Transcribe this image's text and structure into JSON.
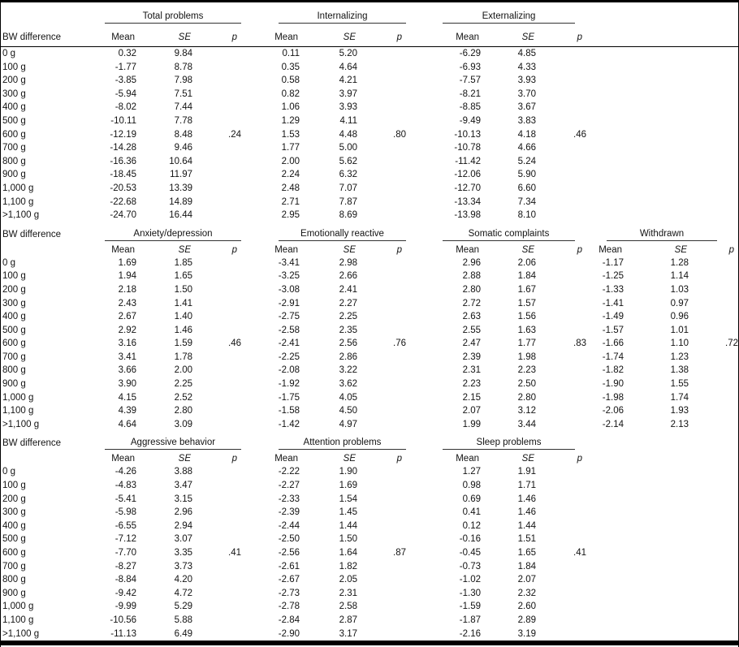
{
  "table": {
    "row_label_header": "BW difference",
    "row_labels": [
      "0 g",
      "100 g",
      "200 g",
      "300 g",
      "400 g",
      "500 g",
      "600 g",
      "700 g",
      "800 g",
      "900 g",
      "1,000 g",
      "1,100 g",
      ">1,100 g"
    ],
    "col_headers": {
      "mean": "Mean",
      "se": "SE",
      "p": "p"
    },
    "p_value_row": "600 g",
    "sections": [
      {
        "groups": [
          {
            "name": "Total problems",
            "mean": [
              "0.32",
              "-1.77",
              "-3.85",
              "-5.94",
              "-8.02",
              "-10.11",
              "-12.19",
              "-14.28",
              "-16.36",
              "-18.45",
              "-20.53",
              "-22.68",
              "-24.70"
            ],
            "se": [
              "9.84",
              "8.78",
              "7.98",
              "7.51",
              "7.44",
              "7.78",
              "8.48",
              "9.46",
              "10.64",
              "11.97",
              "13.39",
              "14.89",
              "16.44"
            ],
            "p": ".24"
          },
          {
            "name": "Internalizing",
            "mean": [
              "0.11",
              "0.35",
              "0.58",
              "0.82",
              "1.06",
              "1.29",
              "1.53",
              "1.77",
              "2.00",
              "2.24",
              "2.48",
              "2.71",
              "2.95"
            ],
            "se": [
              "5.20",
              "4.64",
              "4.21",
              "3.97",
              "3.93",
              "4.11",
              "4.48",
              "5.00",
              "5.62",
              "6.32",
              "7.07",
              "7.87",
              "8.69"
            ],
            "p": ".80"
          },
          {
            "name": "Externalizing",
            "mean": [
              "-6.29",
              "-6.93",
              "-7.57",
              "-8.21",
              "-8.85",
              "-9.49",
              "-10.13",
              "-10.78",
              "-11.42",
              "-12.06",
              "-12.70",
              "-13.34",
              "-13.98"
            ],
            "se": [
              "4.85",
              "4.33",
              "3.93",
              "3.70",
              "3.67",
              "3.83",
              "4.18",
              "4.66",
              "5.24",
              "5.90",
              "6.60",
              "7.34",
              "8.10"
            ],
            "p": ".46"
          }
        ]
      },
      {
        "groups": [
          {
            "name": "Anxiety/depression",
            "mean": [
              "1.69",
              "1.94",
              "2.18",
              "2.43",
              "2.67",
              "2.92",
              "3.16",
              "3.41",
              "3.66",
              "3.90",
              "4.15",
              "4.39",
              "4.64"
            ],
            "se": [
              "1.85",
              "1.65",
              "1.50",
              "1.41",
              "1.40",
              "1.46",
              "1.59",
              "1.78",
              "2.00",
              "2.25",
              "2.52",
              "2.80",
              "3.09"
            ],
            "p": ".46"
          },
          {
            "name": "Emotionally reactive",
            "mean": [
              "-3.41",
              "-3.25",
              "-3.08",
              "-2.91",
              "-2.75",
              "-2.58",
              "-2.41",
              "-2.25",
              "-2.08",
              "-1.92",
              "-1.75",
              "-1.58",
              "-1.42"
            ],
            "se": [
              "2.98",
              "2.66",
              "2.41",
              "2.27",
              "2.25",
              "2.35",
              "2.56",
              "2.86",
              "3.22",
              "3.62",
              "4.05",
              "4.50",
              "4.97"
            ],
            "p": ".76"
          },
          {
            "name": "Somatic complaints",
            "mean": [
              "2.96",
              "2.88",
              "2.80",
              "2.72",
              "2.63",
              "2.55",
              "2.47",
              "2.39",
              "2.31",
              "2.23",
              "2.15",
              "2.07",
              "1.99"
            ],
            "se": [
              "2.06",
              "1.84",
              "1.67",
              "1.57",
              "1.56",
              "1.63",
              "1.77",
              "1.98",
              "2.23",
              "2.50",
              "2.80",
              "3.12",
              "3.44"
            ],
            "p": ".83"
          },
          {
            "name": "Withdrawn",
            "mean": [
              "-1.17",
              "-1.25",
              "-1.33",
              "-1.41",
              "-1.49",
              "-1.57",
              "-1.66",
              "-1.74",
              "-1.82",
              "-1.90",
              "-1.98",
              "-2.06",
              "-2.14"
            ],
            "se": [
              "1.28",
              "1.14",
              "1.03",
              "0.97",
              "0.96",
              "1.01",
              "1.10",
              "1.23",
              "1.38",
              "1.55",
              "1.74",
              "1.93",
              "2.13"
            ],
            "p": ".72"
          }
        ]
      },
      {
        "groups": [
          {
            "name": "Aggressive behavior",
            "mean": [
              "-4.26",
              "-4.83",
              "-5.41",
              "-5.98",
              "-6.55",
              "-7.12",
              "-7.70",
              "-8.27",
              "-8.84",
              "-9.42",
              "-9.99",
              "-10.56",
              "-11.13"
            ],
            "se": [
              "3.88",
              "3.47",
              "3.15",
              "2.96",
              "2.94",
              "3.07",
              "3.35",
              "3.73",
              "4.20",
              "4.72",
              "5.29",
              "5.88",
              "6.49"
            ],
            "p": ".41"
          },
          {
            "name": "Attention problems",
            "mean": [
              "-2.22",
              "-2.27",
              "-2.33",
              "-2.39",
              "-2.44",
              "-2.50",
              "-2.56",
              "-2.61",
              "-2.67",
              "-2.73",
              "-2.78",
              "-2.84",
              "-2.90"
            ],
            "se": [
              "1.90",
              "1.69",
              "1.54",
              "1.45",
              "1.44",
              "1.50",
              "1.64",
              "1.82",
              "2.05",
              "2.31",
              "2.58",
              "2.87",
              "3.17"
            ],
            "p": ".87"
          },
          {
            "name": "Sleep problems",
            "mean": [
              "1.27",
              "0.98",
              "0.69",
              "0.41",
              "0.12",
              "-0.16",
              "-0.45",
              "-0.73",
              "-1.02",
              "-1.30",
              "-1.59",
              "-1.87",
              "-2.16"
            ],
            "se": [
              "1.91",
              "1.71",
              "1.46",
              "1.46",
              "1.44",
              "1.51",
              "1.65",
              "1.84",
              "2.07",
              "2.32",
              "2.60",
              "2.89",
              "3.19"
            ],
            "p": ".41"
          }
        ]
      }
    ]
  }
}
